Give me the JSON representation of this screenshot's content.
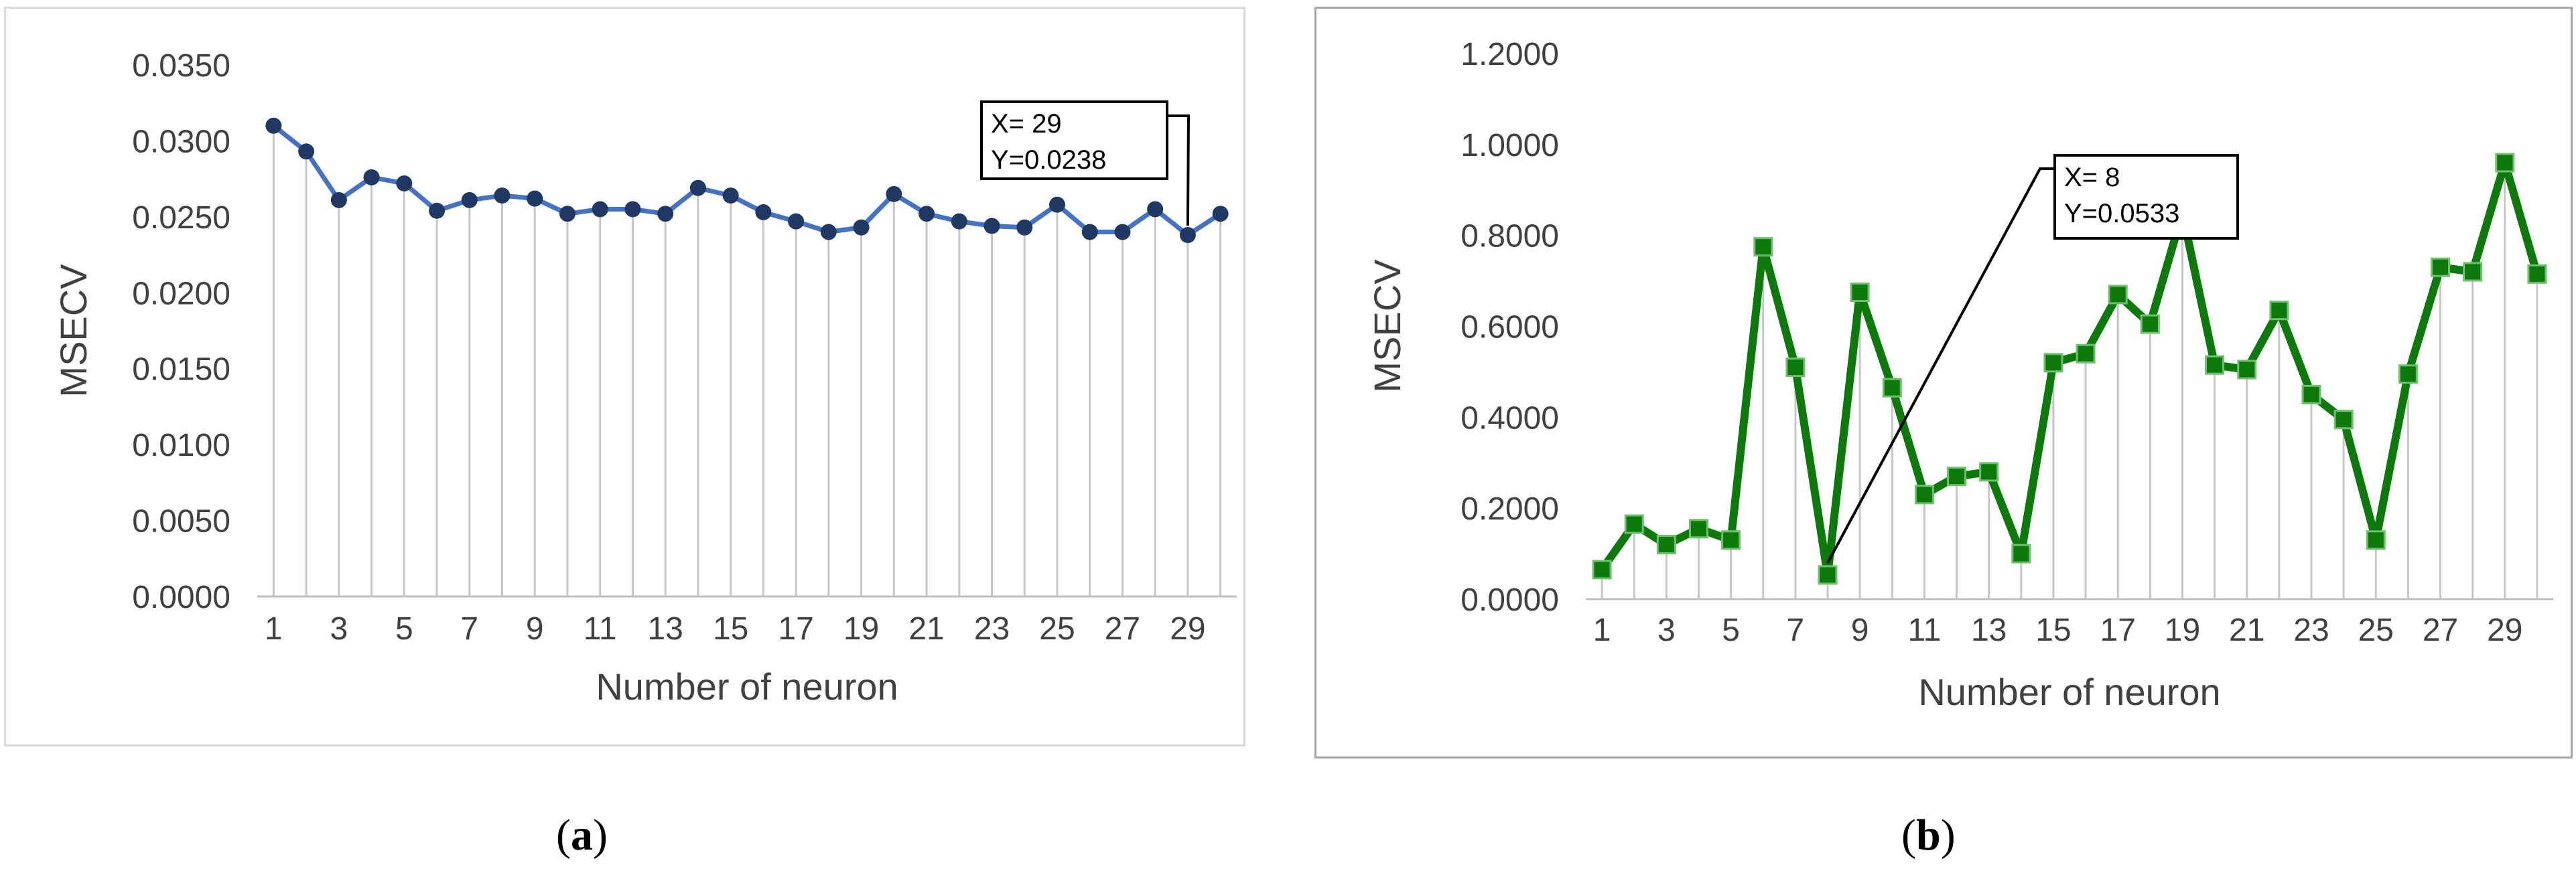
{
  "chart_data": [
    {
      "type": "line",
      "panel_label": "a",
      "xlabel": "Number of neuron",
      "ylabel": "MSECV",
      "x": [
        1,
        2,
        3,
        4,
        5,
        6,
        7,
        8,
        9,
        10,
        11,
        12,
        13,
        14,
        15,
        16,
        17,
        18,
        19,
        20,
        21,
        22,
        23,
        24,
        25,
        26,
        27,
        28,
        29,
        30
      ],
      "x_tick_labels": [
        "1",
        "3",
        "5",
        "7",
        "9",
        "11",
        "13",
        "15",
        "17",
        "19",
        "21",
        "23",
        "25",
        "27",
        "29"
      ],
      "y_tick_labels": [
        "0.0000",
        "0.0050",
        "0.0100",
        "0.0150",
        "0.0200",
        "0.0250",
        "0.0300",
        "0.0350"
      ],
      "ylim": [
        0,
        0.035
      ],
      "grid": "vertical drop lines",
      "series": [
        {
          "color": "#4472c4",
          "marker_color": "#1f3864",
          "marker": "circle",
          "values": [
            0.031,
            0.0293,
            0.0261,
            0.0276,
            0.0272,
            0.0254,
            0.0261,
            0.0264,
            0.0262,
            0.0252,
            0.0255,
            0.0255,
            0.0252,
            0.0269,
            0.0264,
            0.0253,
            0.0247,
            0.024,
            0.0243,
            0.0265,
            0.0252,
            0.0247,
            0.0244,
            0.0243,
            0.0258,
            0.024,
            0.024,
            0.0255,
            0.0238,
            0.0252
          ]
        }
      ],
      "annotation": {
        "x_label": "X= 29",
        "y_label": "Y=0.0238",
        "x": 29,
        "y": 0.0238
      }
    },
    {
      "type": "line",
      "panel_label": "b",
      "xlabel": "Number of neuron",
      "ylabel": "MSECV",
      "x": [
        1,
        2,
        3,
        4,
        5,
        6,
        7,
        8,
        9,
        10,
        11,
        12,
        13,
        14,
        15,
        16,
        17,
        18,
        19,
        20,
        21,
        22,
        23,
        24,
        25,
        26,
        27,
        28,
        29,
        30
      ],
      "x_tick_labels": [
        "1",
        "3",
        "5",
        "7",
        "9",
        "11",
        "13",
        "15",
        "17",
        "19",
        "21",
        "23",
        "25",
        "27",
        "29"
      ],
      "y_tick_labels": [
        "0.0000",
        "0.2000",
        "0.4000",
        "0.6000",
        "0.8000",
        "1.0000",
        "1.2000"
      ],
      "ylim": [
        0,
        1.2
      ],
      "grid": "vertical drop lines",
      "series": [
        {
          "color": "#0b7a0b",
          "marker_color": "#0b7a0b",
          "marker": "square",
          "values": [
            0.065,
            0.165,
            0.12,
            0.155,
            0.13,
            0.775,
            0.51,
            0.0533,
            0.675,
            0.465,
            0.23,
            0.27,
            0.28,
            0.1,
            0.52,
            0.54,
            0.67,
            0.605,
            0.85,
            0.515,
            0.505,
            0.635,
            0.45,
            0.395,
            0.13,
            0.495,
            0.73,
            0.72,
            0.96,
            0.715
          ]
        }
      ],
      "annotation": {
        "x_label": "X= 8",
        "y_label": "Y=0.0533",
        "x": 8,
        "y": 0.0533
      }
    }
  ],
  "captions": {
    "a": {
      "open": "(",
      "label": "a",
      "close": ")"
    },
    "b": {
      "open": "(",
      "label": "b",
      "close": ")"
    }
  }
}
